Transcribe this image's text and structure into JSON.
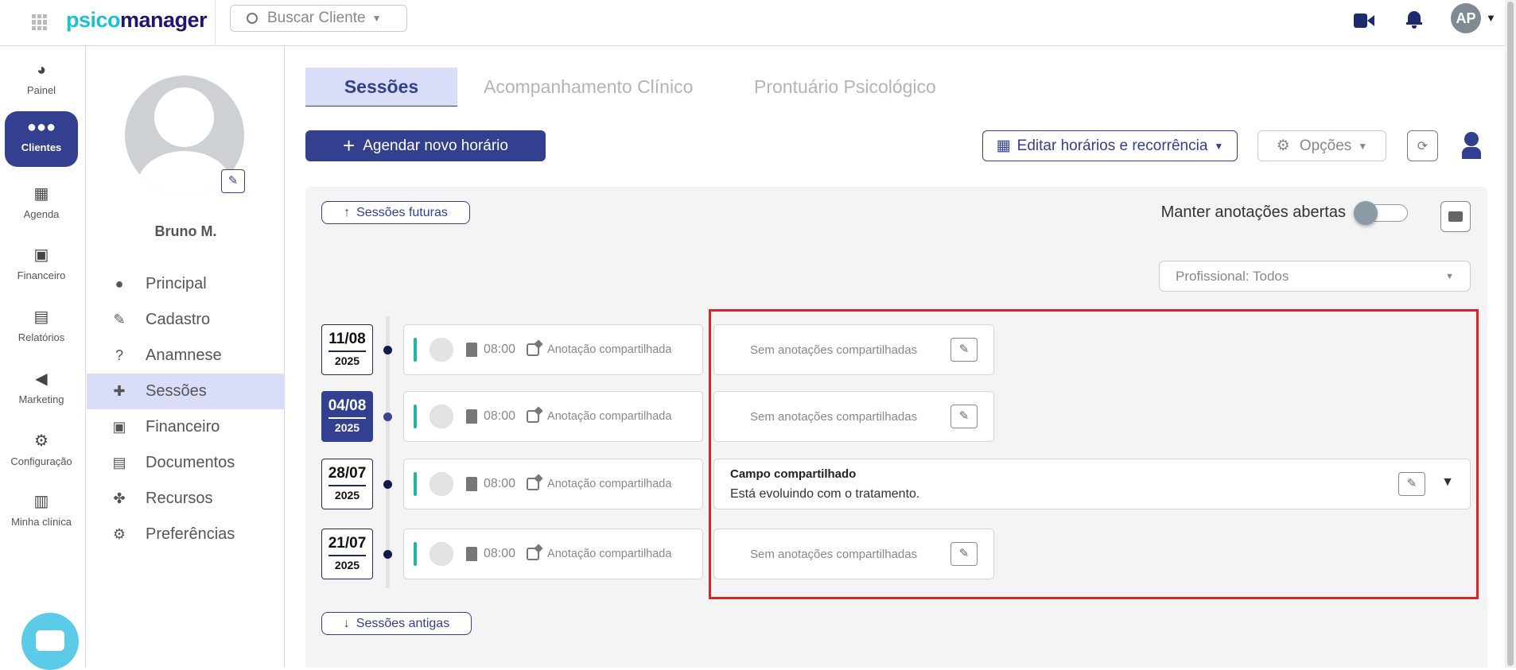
{
  "topbar": {
    "logo_part1": "psico",
    "logo_part2": "manager",
    "search_placeholder": "Buscar Cliente",
    "user_initials": "AP"
  },
  "rail": [
    {
      "label": "Painel",
      "icon": "dashboard-icon"
    },
    {
      "label": "Clientes",
      "icon": "users-icon",
      "active": true
    },
    {
      "label": "Agenda",
      "icon": "calendar-icon"
    },
    {
      "label": "Financeiro",
      "icon": "money-icon"
    },
    {
      "label": "Relatórios",
      "icon": "file-icon"
    },
    {
      "label": "Marketing",
      "icon": "megaphone-icon"
    },
    {
      "label": "Configuração",
      "icon": "gear-icon"
    },
    {
      "label": "Minha clínica",
      "icon": "building-icon"
    }
  ],
  "client": {
    "name": "Bruno M.",
    "nav": [
      {
        "label": "Principal"
      },
      {
        "label": "Cadastro"
      },
      {
        "label": "Anamnese"
      },
      {
        "label": "Sessões",
        "active": true
      },
      {
        "label": "Financeiro"
      },
      {
        "label": "Documentos"
      },
      {
        "label": "Recursos"
      },
      {
        "label": "Preferências"
      }
    ]
  },
  "tabs": [
    {
      "label": "Sessões",
      "active": true
    },
    {
      "label": "Acompanhamento Clínico"
    },
    {
      "label": "Prontuário Psicológico"
    }
  ],
  "toolbar": {
    "schedule": "Agendar novo horário",
    "edit": "Editar horários e recorrência",
    "options": "Opções"
  },
  "panel": {
    "future": "Sessões futuras",
    "past": "Sessões antigas",
    "keep_open": "Manter anotações abertas",
    "keep_open_on": false,
    "professional": "Profissional: Todos"
  },
  "sessions": [
    {
      "day": "11/08",
      "year": "2025",
      "time": "08:00",
      "annotation": "Anotação compartilhada",
      "note": "Sem anotações compartilhadas"
    },
    {
      "day": "04/08",
      "year": "2025",
      "time": "08:00",
      "annotation": "Anotação compartilhada",
      "note": "Sem anotações compartilhadas",
      "selected": true
    },
    {
      "day": "28/07",
      "year": "2025",
      "time": "08:00",
      "annotation": "Anotação compartilhada",
      "note_title": "Campo compartilhado",
      "note_body": "Está evoluindo com o tratamento."
    },
    {
      "day": "21/07",
      "year": "2025",
      "time": "08:00",
      "annotation": "Anotação compartilhada",
      "note": "Sem anotações compartilhadas"
    }
  ],
  "colors": {
    "primary": "#333f8f",
    "accent": "#26b3a0",
    "highlight": "#e3202a"
  }
}
